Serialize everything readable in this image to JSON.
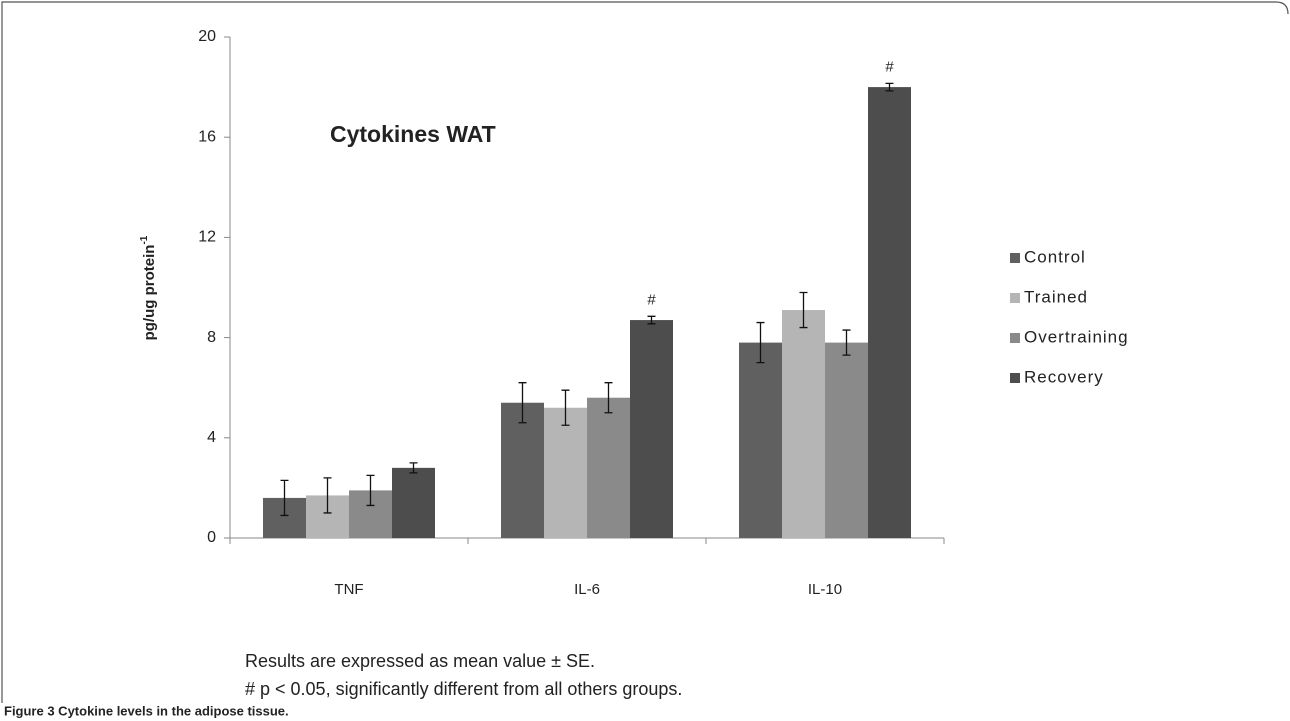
{
  "chart_data": {
    "type": "bar",
    "title": "Cytokines WAT",
    "ylabel": {
      "text": "pg/ug protein",
      "superscript": "-1"
    },
    "categories": [
      "TNF",
      "IL-6",
      "IL-10"
    ],
    "series": [
      {
        "name": "Control",
        "color": "#606060",
        "values": [
          1.6,
          5.4,
          7.8
        ],
        "errors": [
          0.7,
          0.8,
          0.8
        ]
      },
      {
        "name": "Trained",
        "color": "#b5b5b5",
        "values": [
          1.7,
          5.2,
          9.1
        ],
        "errors": [
          0.7,
          0.7,
          0.7
        ]
      },
      {
        "name": "Overtraining",
        "color": "#8a8a8a",
        "values": [
          1.9,
          5.6,
          7.8
        ],
        "errors": [
          0.6,
          0.6,
          0.5
        ]
      },
      {
        "name": "Recovery",
        "color": "#4d4d4d",
        "values": [
          2.8,
          8.7,
          18.0
        ],
        "errors": [
          0.2,
          0.15,
          0.15
        ]
      }
    ],
    "annotations": [
      {
        "text": "#",
        "category": "IL-6",
        "series": "Recovery"
      },
      {
        "text": "#",
        "category": "IL-10",
        "series": "Recovery"
      }
    ],
    "ylim": [
      0,
      20
    ],
    "yticks": [
      0,
      4,
      8,
      12,
      16,
      20
    ],
    "legend": "right",
    "notes": [
      "Results are expressed as mean value ± SE.",
      "# p < 0.05, significantly different from all others groups."
    ],
    "caption": "Figure 3 Cytokine levels in the adipose tissue."
  }
}
